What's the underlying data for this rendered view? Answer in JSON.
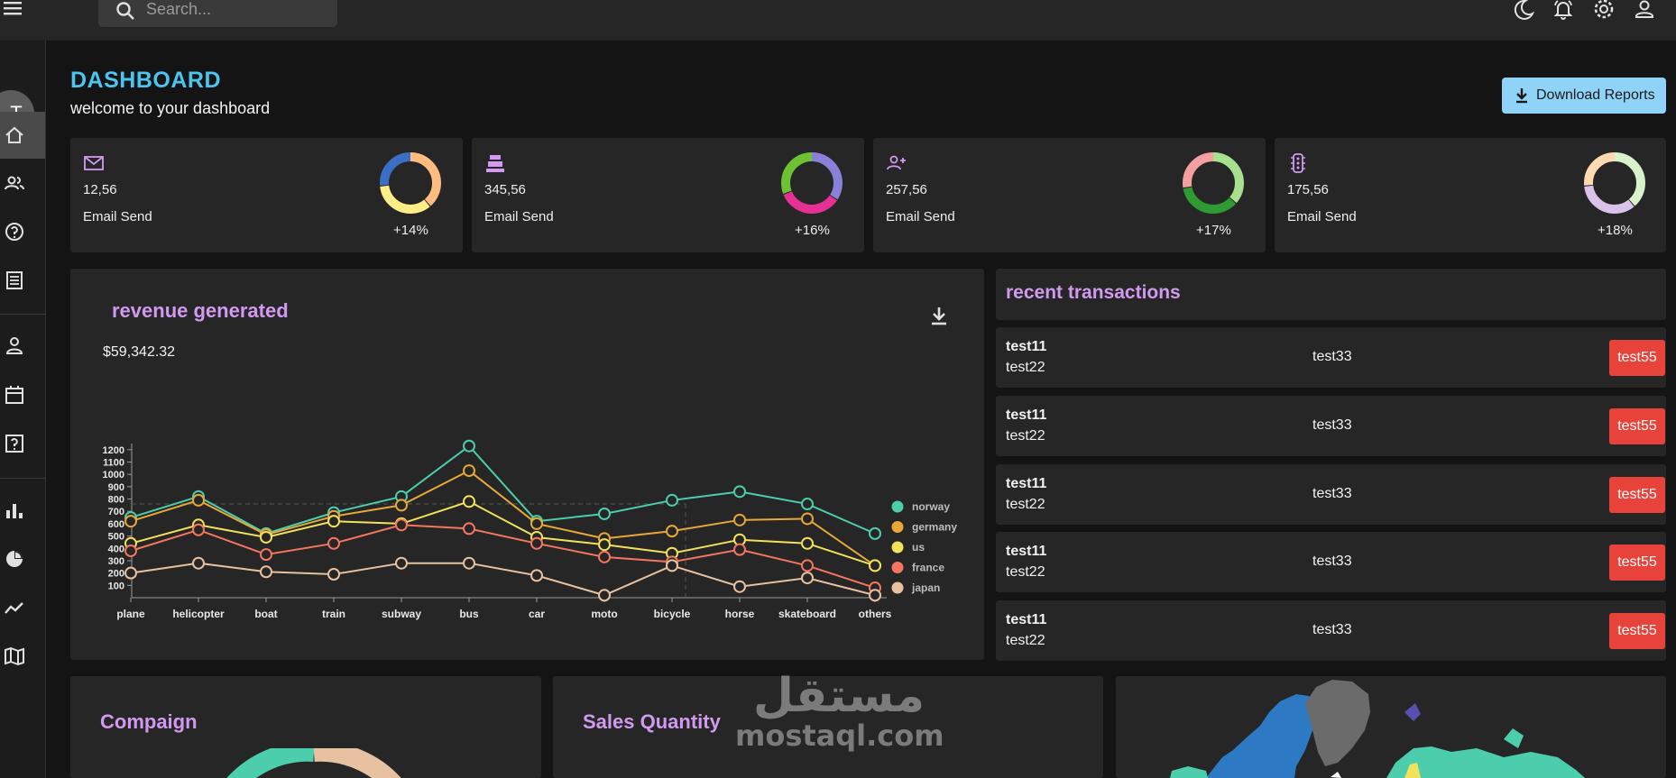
{
  "topbar": {
    "search_placeholder": "Search...",
    "icons": [
      "menu-icon",
      "search-icon",
      "dark-mode-icon",
      "notifications-icon",
      "settings-icon",
      "profile-icon"
    ]
  },
  "sidebar": {
    "avatar_initial": "T",
    "items": [
      "dashboard",
      "team",
      "contacts",
      "invoices",
      "profile-form",
      "calendar",
      "faq",
      "bar-chart",
      "pie-chart",
      "line-chart",
      "geography"
    ]
  },
  "header": {
    "title": "DASHBOARD",
    "subtitle": "welcome to your dashboard",
    "download_label": "Download Reports"
  },
  "stats": [
    {
      "value": "12,56",
      "label": "Email Send",
      "percent": "+14%",
      "icon": "email-icon",
      "colors": [
        "#ffbb80",
        "#ffee88",
        "#3a6fc4"
      ]
    },
    {
      "value": "345,56",
      "label": "Email Send",
      "percent": "+16%",
      "icon": "cash-register-icon",
      "colors": [
        "#8a80d8",
        "#e53193",
        "#6ec132"
      ]
    },
    {
      "value": "257,56",
      "label": "Email Send",
      "percent": "+17%",
      "icon": "person-add-icon",
      "colors": [
        "#a8e090",
        "#2e9a32",
        "#f4a0a0"
      ]
    },
    {
      "value": "175,56",
      "label": "Email Send",
      "percent": "+18%",
      "icon": "traffic-icon",
      "colors": [
        "#d8f2cc",
        "#d9c3ea",
        "#ffd9b0"
      ]
    }
  ],
  "revenue": {
    "title": "revenue generated",
    "amount": "$59,342.32"
  },
  "chart_data": {
    "type": "line",
    "categories": [
      "plane",
      "helicopter",
      "boat",
      "train",
      "subway",
      "bus",
      "car",
      "moto",
      "bicycle",
      "horse",
      "skateboard",
      "others"
    ],
    "yticks": [
      100,
      200,
      300,
      400,
      500,
      600,
      700,
      800,
      900,
      1000,
      1100,
      1200
    ],
    "ylim": [
      0,
      1250
    ],
    "series": [
      {
        "name": "norway",
        "color": "#4cceac",
        "values": [
          650,
          820,
          520,
          690,
          820,
          1230,
          620,
          680,
          790,
          860,
          760,
          520
        ]
      },
      {
        "name": "germany",
        "color": "#e8a838",
        "values": [
          620,
          790,
          510,
          660,
          750,
          1030,
          600,
          480,
          540,
          630,
          640,
          260
        ]
      },
      {
        "name": "us",
        "color": "#f1e15b",
        "values": [
          440,
          590,
          490,
          620,
          600,
          780,
          490,
          430,
          360,
          470,
          440,
          260
        ]
      },
      {
        "name": "france",
        "color": "#f47560",
        "values": [
          380,
          550,
          350,
          440,
          590,
          560,
          440,
          330,
          290,
          390,
          260,
          80
        ]
      },
      {
        "name": "japan",
        "color": "#e8c1a0",
        "values": [
          200,
          280,
          210,
          190,
          280,
          280,
          180,
          20,
          260,
          90,
          160,
          20
        ]
      }
    ]
  },
  "transactions": {
    "title": "recent transactions",
    "rows": [
      {
        "a": "test11",
        "b": "test22",
        "c": "test33",
        "d": "test55"
      },
      {
        "a": "test11",
        "b": "test22",
        "c": "test33",
        "d": "test55"
      },
      {
        "a": "test11",
        "b": "test22",
        "c": "test33",
        "d": "test55"
      },
      {
        "a": "test11",
        "b": "test22",
        "c": "test33",
        "d": "test55"
      },
      {
        "a": "test11",
        "b": "test22",
        "c": "test33",
        "d": "test55"
      }
    ]
  },
  "bottom": {
    "campaign_title": "Compaign",
    "sales_title": "Sales Quantity"
  },
  "watermark": {
    "arabic": "مستقل",
    "latin": "mostaql.com"
  }
}
